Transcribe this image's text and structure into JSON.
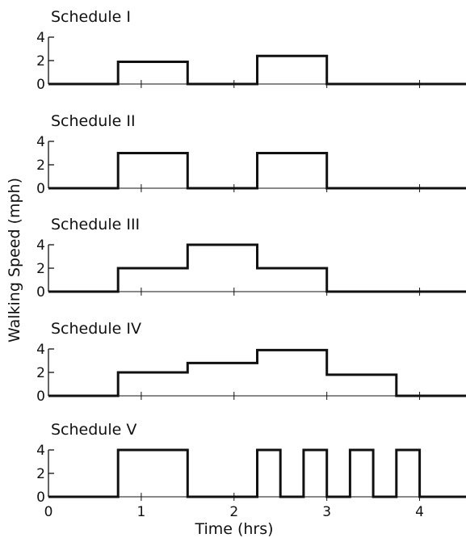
{
  "colors": {
    "ink": "#111111",
    "background": "#ffffff"
  },
  "chart_data": {
    "type": "line",
    "step": true,
    "shared_x_axis": true,
    "xlabel": "Time (hrs)",
    "ylabel": "Walking Speed (mph)",
    "x_ticks": [
      0,
      1,
      2,
      3,
      4
    ],
    "x_tick_labels": [
      "0",
      "1",
      "2",
      "3",
      "4"
    ],
    "xlim": [
      0,
      4.5
    ],
    "y_ticks": [
      0,
      2,
      4
    ],
    "y_tick_labels": [
      "0",
      "2",
      "4"
    ],
    "ylim": [
      0,
      4
    ],
    "panels": [
      {
        "title": "Schedule I",
        "x": [
          0,
          0.75,
          0.75,
          1.5,
          1.5,
          2.25,
          2.25,
          3.0,
          3.0,
          4.5
        ],
        "y": [
          0,
          0,
          1.9,
          1.9,
          0,
          0,
          2.4,
          2.4,
          0,
          0
        ]
      },
      {
        "title": "Schedule II",
        "x": [
          0,
          0.75,
          0.75,
          1.5,
          1.5,
          2.25,
          2.25,
          3.0,
          3.0,
          4.5
        ],
        "y": [
          0,
          0,
          3.0,
          3.0,
          0,
          0,
          3.0,
          3.0,
          0,
          0
        ]
      },
      {
        "title": "Schedule III",
        "x": [
          0,
          0.75,
          0.75,
          1.5,
          1.5,
          2.25,
          2.25,
          3.0,
          3.0,
          4.5
        ],
        "y": [
          0,
          0,
          2.0,
          2.0,
          4.0,
          4.0,
          2.0,
          2.0,
          0,
          0
        ]
      },
      {
        "title": "Schedule IV",
        "x": [
          0,
          0.75,
          0.75,
          1.5,
          1.5,
          2.25,
          2.25,
          3.0,
          3.0,
          3.75,
          3.75,
          4.5
        ],
        "y": [
          0,
          0,
          2.0,
          2.0,
          2.8,
          2.8,
          3.9,
          3.9,
          1.8,
          1.8,
          0,
          0
        ]
      },
      {
        "title": "Schedule V",
        "x": [
          0,
          0.75,
          0.75,
          1.5,
          1.5,
          2.25,
          2.25,
          2.5,
          2.5,
          2.75,
          2.75,
          3.0,
          3.0,
          3.25,
          3.25,
          3.5,
          3.5,
          3.75,
          3.75,
          4.0,
          4.0,
          4.5
        ],
        "y": [
          0,
          0,
          4.0,
          4.0,
          0,
          0,
          4.0,
          4.0,
          0,
          0,
          4.0,
          4.0,
          0,
          0,
          4.0,
          4.0,
          0,
          0,
          4.0,
          4.0,
          0,
          0
        ]
      }
    ]
  }
}
